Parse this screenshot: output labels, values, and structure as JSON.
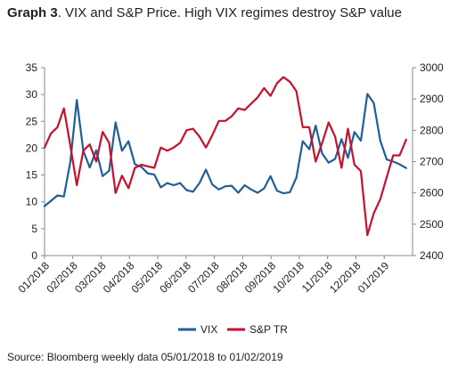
{
  "title": {
    "prefix": "Graph 3",
    "text": ". VIX and S&P Price. High VIX regimes destroy S&P value"
  },
  "source": "Source: Bloomberg weekly data 05/01/2018 to 01/02/2019",
  "colors": {
    "vix": "#1f5f9a",
    "spx": "#c8102e",
    "axis": "#888888"
  },
  "chart_data": {
    "type": "line",
    "x_tick_labels": [
      "01/2018",
      "02/2018",
      "03/2018",
      "04/2018",
      "05/2018",
      "06/2018",
      "07/2018",
      "08/2018",
      "09/2018",
      "10/2018",
      "11/2018",
      "12/2018",
      "01/2019"
    ],
    "y_left": {
      "ylim": [
        0,
        35
      ],
      "ticks": [
        0,
        5,
        10,
        15,
        20,
        25,
        30,
        35
      ]
    },
    "y_right": {
      "ylim": [
        2400,
        3000
      ],
      "ticks": [
        2400,
        2500,
        2600,
        2700,
        2800,
        2900,
        3000
      ]
    },
    "x_range_weeks": [
      0,
      57
    ],
    "legend_position": "bottom-center",
    "series": [
      {
        "name": "VIX",
        "axis": "left",
        "x": [
          0,
          1,
          2,
          3,
          4,
          5,
          6,
          7,
          8,
          9,
          10,
          11,
          12,
          13,
          14,
          15,
          16,
          17,
          18,
          19,
          20,
          21,
          22,
          23,
          24,
          25,
          26,
          27,
          28,
          29,
          30,
          31,
          32,
          33,
          34,
          35,
          36,
          37,
          38,
          39,
          40,
          41,
          42,
          43,
          44,
          45,
          46,
          47,
          48,
          49,
          50,
          51,
          52,
          53,
          54,
          55,
          56
        ],
        "values": [
          9.2,
          10.2,
          11.2,
          11.0,
          17.5,
          29.0,
          19.5,
          16.4,
          19.6,
          14.8,
          15.8,
          24.8,
          19.5,
          21.3,
          17.0,
          16.5,
          15.3,
          15.1,
          12.7,
          13.5,
          13.1,
          13.5,
          12.2,
          11.9,
          13.5,
          16.0,
          13.2,
          12.3,
          12.9,
          13.0,
          11.7,
          13.1,
          12.3,
          11.7,
          12.5,
          14.8,
          12.1,
          11.6,
          11.8,
          14.5,
          21.3,
          19.8,
          24.2,
          19.0,
          17.3,
          18.0,
          21.7,
          18.2,
          23.0,
          21.4,
          30.1,
          28.4,
          21.4,
          17.9,
          17.5,
          17.0,
          16.3
        ]
      },
      {
        "name": "S&P TR",
        "axis": "right",
        "x": [
          0,
          1,
          2,
          3,
          4,
          5,
          6,
          7,
          8,
          9,
          10,
          11,
          12,
          13,
          14,
          15,
          16,
          17,
          18,
          19,
          20,
          21,
          22,
          23,
          24,
          25,
          26,
          27,
          28,
          29,
          30,
          31,
          32,
          33,
          34,
          35,
          36,
          37,
          38,
          39,
          40,
          41,
          42,
          43,
          44,
          45,
          46,
          47,
          48,
          49,
          50,
          51,
          52,
          53,
          54,
          55,
          56
        ],
        "values": [
          2745,
          2790,
          2810,
          2870,
          2750,
          2625,
          2735,
          2755,
          2700,
          2795,
          2760,
          2600,
          2655,
          2615,
          2680,
          2690,
          2685,
          2680,
          2745,
          2735,
          2745,
          2760,
          2800,
          2805,
          2780,
          2745,
          2785,
          2830,
          2830,
          2845,
          2870,
          2865,
          2885,
          2905,
          2935,
          2910,
          2950,
          2970,
          2955,
          2925,
          2810,
          2810,
          2700,
          2760,
          2825,
          2780,
          2680,
          2805,
          2690,
          2670,
          2465,
          2535,
          2580,
          2650,
          2720,
          2720,
          2770
        ]
      }
    ]
  }
}
